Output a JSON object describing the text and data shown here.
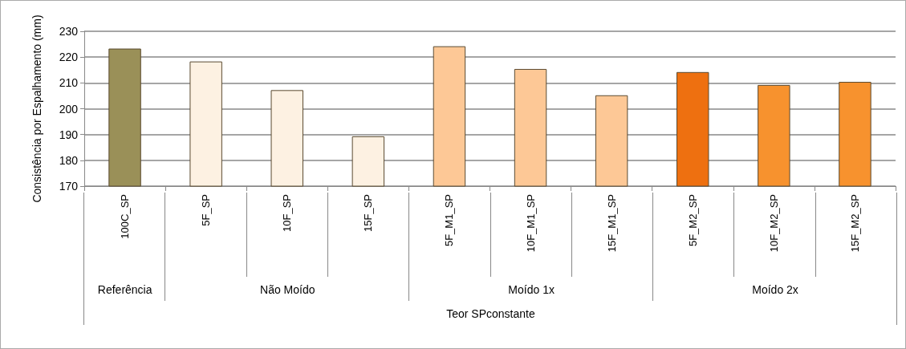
{
  "chart_data": {
    "type": "bar",
    "categories": [
      "100C_SP",
      "5F_SP",
      "10F_SP",
      "15F_SP",
      "5F_M1_SP",
      "10F_M1_SP",
      "15F_M1_SP",
      "5F_M2_SP",
      "10F_M2_SP",
      "15F_M2_SP"
    ],
    "values": [
      223.3,
      218.3,
      207.2,
      189.3,
      224.2,
      215.4,
      205.2,
      214.2,
      209.2,
      210.4
    ],
    "colors": [
      "#9a9058",
      "#fdf1e2",
      "#fdf1e2",
      "#fdf1e2",
      "#fdc896",
      "#fdc896",
      "#fdc896",
      "#ee7010",
      "#f7922e",
      "#f7922e"
    ],
    "ylabel": "Consistência por Espalhamento (mm)",
    "annotations": [
      "Referência",
      "Não Moído",
      "Moído 1x",
      "Moído 2x",
      "Teor SPconstante"
    ],
    "ylim": [
      170,
      230
    ],
    "yticks": [
      170,
      180,
      190,
      200,
      210,
      220,
      230
    ],
    "grid": "y"
  }
}
